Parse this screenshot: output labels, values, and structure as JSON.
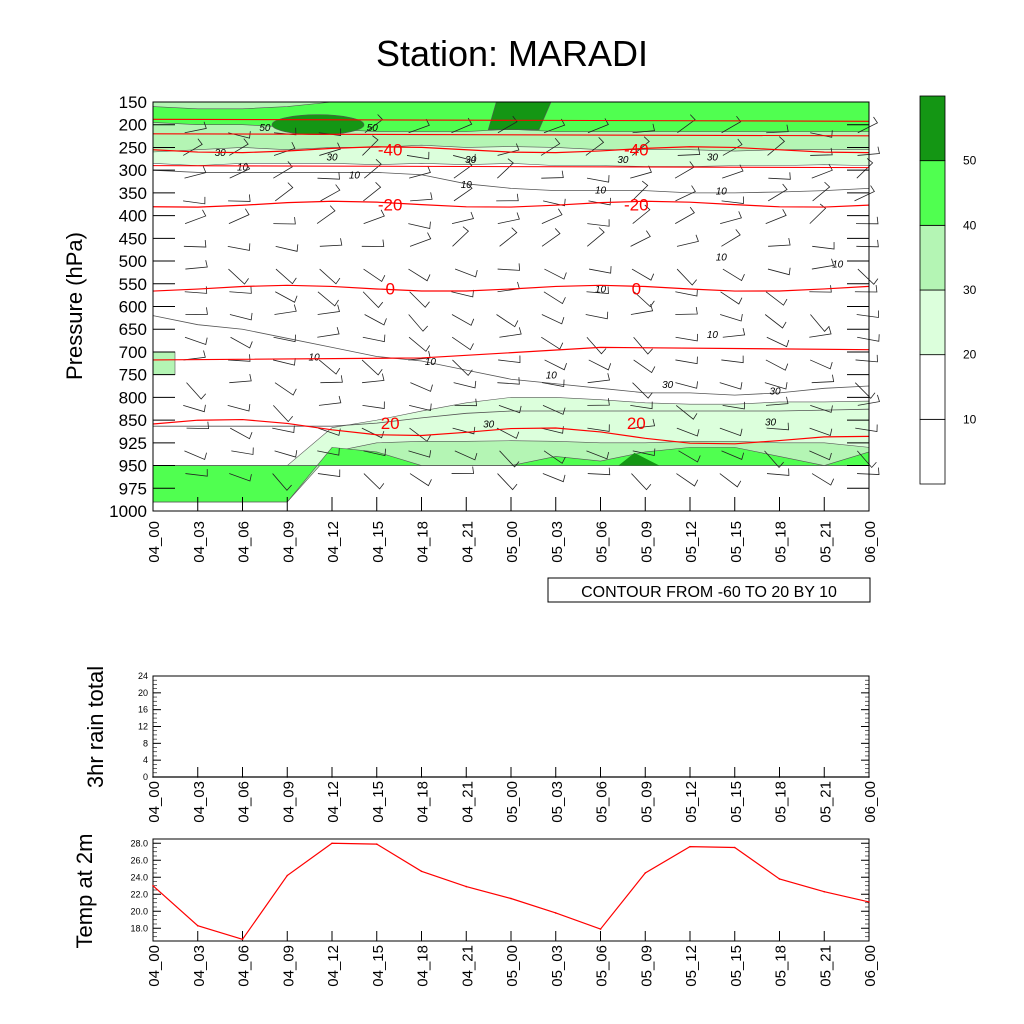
{
  "title": "Station: MARADI",
  "time_labels": [
    "04_00",
    "04_03",
    "04_06",
    "04_09",
    "04_12",
    "04_15",
    "04_18",
    "04_21",
    "05_00",
    "05_03",
    "05_06",
    "05_09",
    "05_12",
    "05_15",
    "05_18",
    "05_21",
    "06_00"
  ],
  "chart_data": [
    {
      "type": "heatmap",
      "name": "time-height cross section (humidity fill, temperature contours, wind barbs)",
      "ylabel": "Pressure (hPa)",
      "pressure_levels": [
        150,
        200,
        250,
        300,
        350,
        400,
        450,
        500,
        550,
        600,
        650,
        700,
        750,
        800,
        850,
        925,
        950,
        975,
        1000
      ],
      "footer": "CONTOUR FROM -60 TO 20 BY 10",
      "colorbar": {
        "levels": [
          10,
          20,
          30,
          40,
          50
        ],
        "colors": [
          "#ffffff",
          "#ffffff",
          "#dcffdc",
          "#b4f5b4",
          "#50ff50",
          "#149614"
        ]
      },
      "temperature_contours": [
        {
          "label": "-40",
          "pressure": 255
        },
        {
          "label": "-20",
          "pressure": 375
        },
        {
          "label": "0",
          "pressure": 560
        },
        {
          "label": "20",
          "pressure": 860
        }
      ],
      "humidity_contour_labels": [
        "50",
        "50",
        "30",
        "30",
        "30",
        "30",
        "30",
        "10",
        "10",
        "10",
        "10",
        "10",
        "10",
        "10",
        "10",
        "10",
        "10",
        "10",
        "10",
        "30",
        "30",
        "30",
        "30"
      ]
    },
    {
      "type": "line",
      "name": "3hr rain total",
      "ylabel": "3hr rain total",
      "ylim": [
        0,
        24
      ],
      "yticks": [
        "0",
        "4",
        "8",
        "12",
        "16",
        "20",
        "24"
      ],
      "values": [
        0,
        0,
        0,
        0,
        0,
        0,
        0,
        0,
        0,
        0,
        0,
        0,
        0,
        0,
        0,
        0,
        0
      ]
    },
    {
      "type": "line",
      "name": "Temp at 2m",
      "ylabel": "Temp at 2m",
      "ylim": [
        16.5,
        28.5
      ],
      "yticks": [
        "18.0",
        "20.0",
        "22.0",
        "24.0",
        "26.0",
        "28.0"
      ],
      "values": [
        23.0,
        18.3,
        16.7,
        24.2,
        28.0,
        27.9,
        24.7,
        22.9,
        21.5,
        19.8,
        17.9,
        24.5,
        27.6,
        27.5,
        23.8,
        22.3,
        21.1
      ],
      "color": "#ff0000"
    }
  ]
}
